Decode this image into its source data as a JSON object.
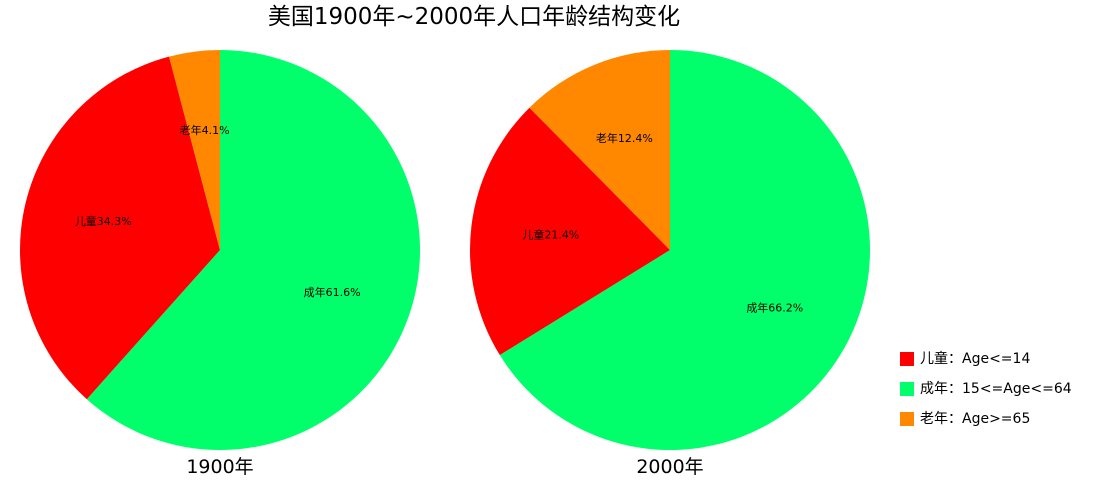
{
  "chart_data": {
    "type": "pie",
    "title": "美国1900年~2000年人口年龄结构变化",
    "pies": [
      {
        "label": "1900年",
        "slices": [
          {
            "key": "adult",
            "text": "成年61.6%",
            "value": 61.6,
            "color": "#00ff6a"
          },
          {
            "key": "child",
            "text": "儿童34.3%",
            "value": 34.3,
            "color": "#ff0000"
          },
          {
            "key": "elder",
            "text": "老年4.1%",
            "value": 4.1,
            "color": "#ff8800"
          }
        ]
      },
      {
        "label": "2000年",
        "slices": [
          {
            "key": "adult",
            "text": "成年66.2%",
            "value": 66.2,
            "color": "#00ff6a"
          },
          {
            "key": "child",
            "text": "儿童21.4%",
            "value": 21.4,
            "color": "#ff0000"
          },
          {
            "key": "elder",
            "text": "老年12.4%",
            "value": 12.4,
            "color": "#ff8800"
          }
        ]
      }
    ],
    "legend": {
      "placement": "bottom-right",
      "items": [
        {
          "label": "儿童：Age<=14",
          "color": "#ff0000"
        },
        {
          "label": "成年：15<=Age<=64",
          "color": "#00ff6a"
        },
        {
          "label": "老年：Age>=65",
          "color": "#ff8800"
        }
      ]
    }
  }
}
